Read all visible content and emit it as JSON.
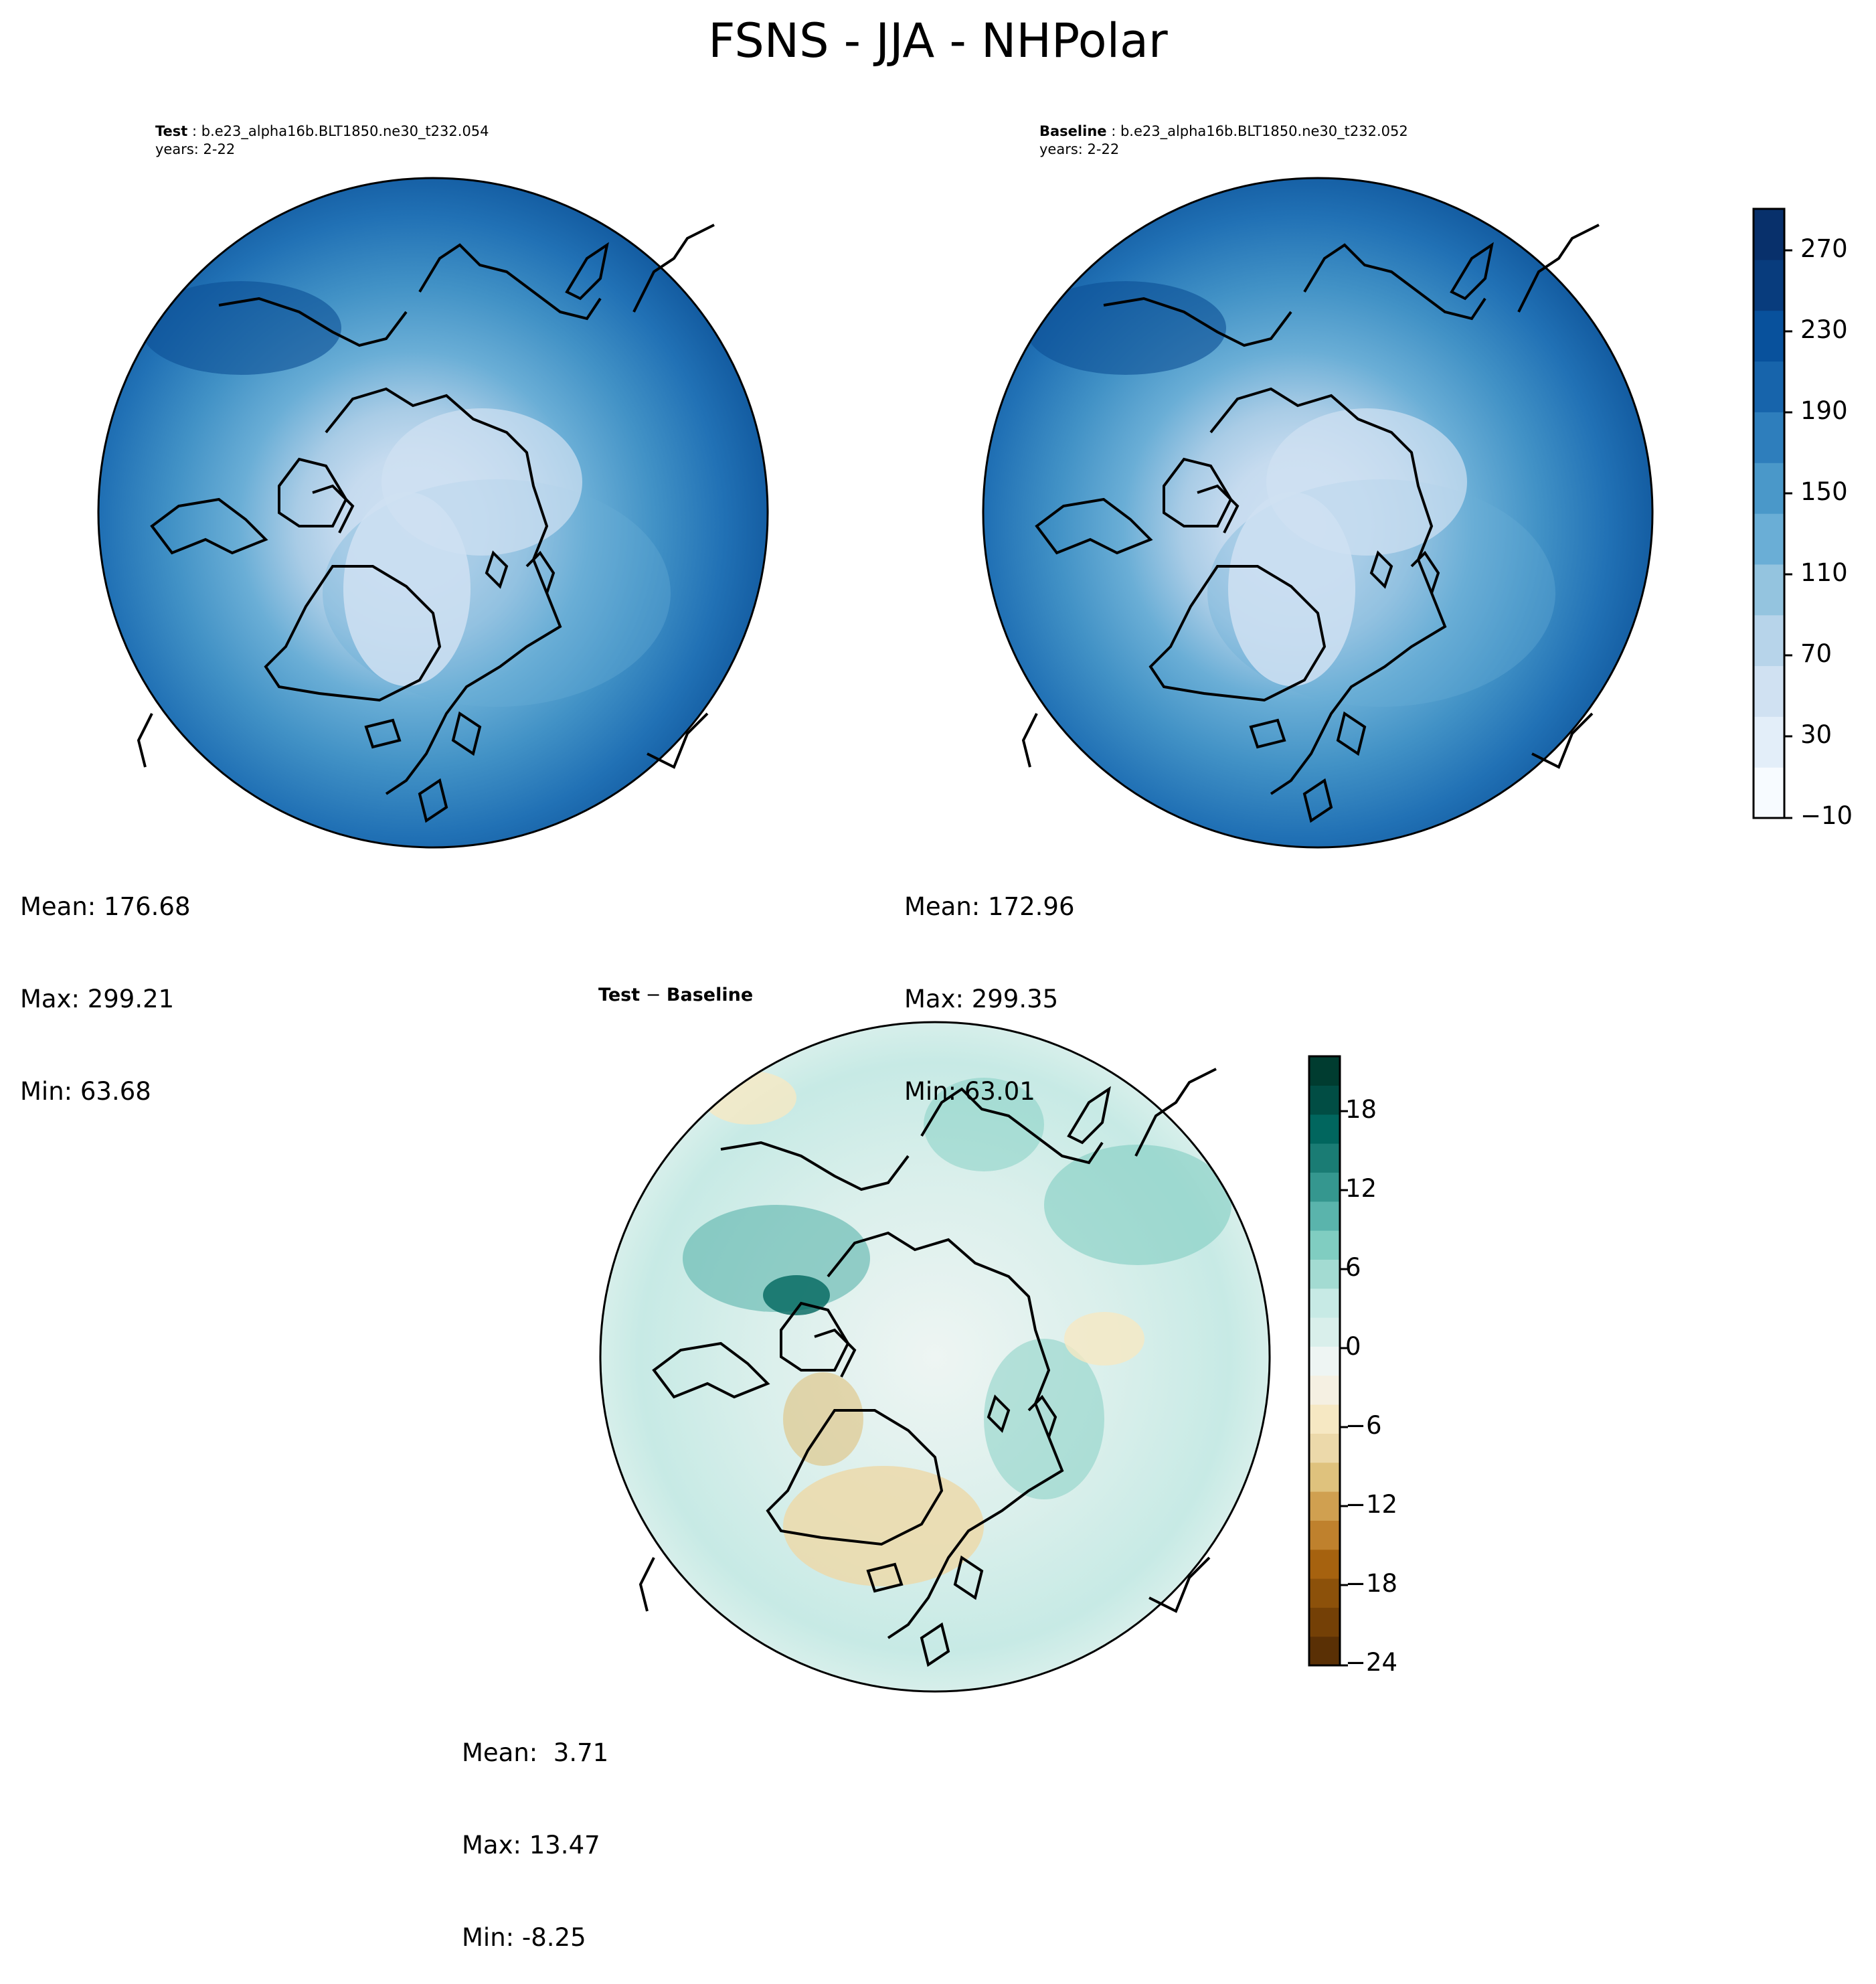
{
  "figure": {
    "title": "FSNS - JJA - NHPolar"
  },
  "panels": {
    "test": {
      "label": "Test",
      "case": " : b.e23_alpha16b.BLT1850.ne30_t232.054",
      "years": "years: 2-22",
      "stats": {
        "mean": "Mean: 176.68",
        "max": "Max: 299.21",
        "min": "Min: 63.68"
      }
    },
    "baseline": {
      "label": "Baseline",
      "case": " : b.e23_alpha16b.BLT1850.ne30_t232.052",
      "years": "years: 2-22",
      "stats": {
        "mean": "Mean: 172.96",
        "max": "Max: 299.35",
        "min": "Min: 63.01"
      }
    },
    "diff": {
      "label": "Test",
      "sep": " − ",
      "label2": "Baseline",
      "stats": {
        "mean": "Mean:  3.71",
        "max": "Max: 13.47",
        "min": "Min: -8.25"
      }
    }
  },
  "colorbars": {
    "field": {
      "ticks": [
        "270",
        "230",
        "190",
        "150",
        "110",
        "70",
        "30",
        "−10"
      ],
      "colors": [
        "#f7fbff",
        "#e3eef9",
        "#d0e1f2",
        "#b7d4ea",
        "#94c4df",
        "#6aaed6",
        "#4a98c9",
        "#2e7ebc",
        "#1764ab",
        "#08519c",
        "#083c7d",
        "#08306b"
      ]
    },
    "diff": {
      "ticks": [
        "18",
        "12",
        "6",
        "0",
        "−6",
        "−12",
        "−18",
        "−24"
      ],
      "colors": [
        "#5a3005",
        "#744006",
        "#8c510a",
        "#a6620f",
        "#bf812d",
        "#d0a050",
        "#dfc27d",
        "#ecd9aa",
        "#f6e8c3",
        "#f5f0e2",
        "#eef5f3",
        "#d9efeb",
        "#c7eae5",
        "#a3dbd2",
        "#80cdc1",
        "#5ab4ac",
        "#35978f",
        "#1a7c74",
        "#01665e",
        "#014d44",
        "#003c30"
      ]
    }
  },
  "map_data": {
    "projection": "North Polar Stereographic",
    "region": "NHPolar",
    "coastlines": true
  }
}
